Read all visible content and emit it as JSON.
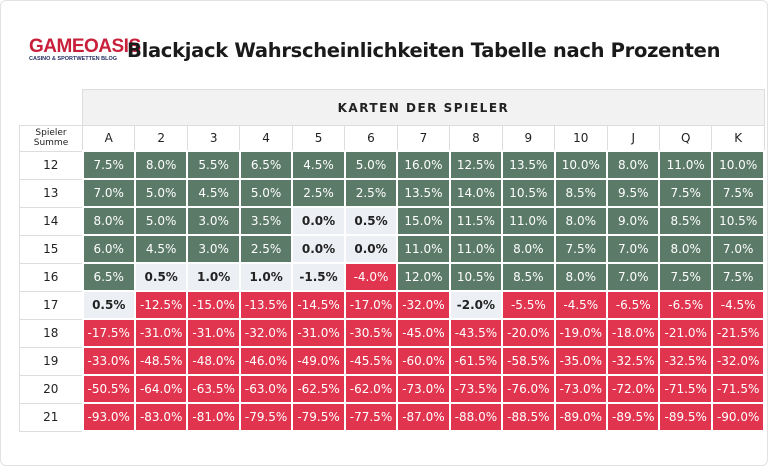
{
  "logo": {
    "name": "GAMEOASIS",
    "tagline": "CASINO & SPORTWETTEN BLOG"
  },
  "title": "Blackjack Wahrscheinlichkeiten Tabelle nach Prozenten",
  "table": {
    "group_header": "KARTEN DER SPIELER",
    "corner": "Spieler Summe",
    "columns": [
      "A",
      "2",
      "3",
      "4",
      "5",
      "6",
      "7",
      "8",
      "9",
      "10",
      "J",
      "Q",
      "K"
    ],
    "rows": [
      {
        "label": "12",
        "cells": [
          "7.5%",
          "8.0%",
          "5.5%",
          "6.5%",
          "4.5%",
          "5.0%",
          "16.0%",
          "12.5%",
          "13.5%",
          "10.0%",
          "8.0%",
          "11.0%",
          "10.0%"
        ]
      },
      {
        "label": "13",
        "cells": [
          "7.0%",
          "5.0%",
          "4.5%",
          "5.0%",
          "2.5%",
          "2.5%",
          "13.5%",
          "14.0%",
          "10.5%",
          "8.5%",
          "9.5%",
          "7.5%",
          "7.5%"
        ]
      },
      {
        "label": "14",
        "cells": [
          "8.0%",
          "5.0%",
          "3.0%",
          "3.5%",
          "0.0%",
          "0.5%",
          "15.0%",
          "11.5%",
          "11.0%",
          "8.0%",
          "9.0%",
          "8.5%",
          "10.5%"
        ]
      },
      {
        "label": "15",
        "cells": [
          "6.0%",
          "4.5%",
          "3.0%",
          "2.5%",
          "0.0%",
          "0.0%",
          "11.0%",
          "11.0%",
          "8.0%",
          "7.5%",
          "7.0%",
          "8.0%",
          "7.0%"
        ]
      },
      {
        "label": "16",
        "cells": [
          "6.5%",
          "0.5%",
          "1.0%",
          "1.0%",
          "-1.5%",
          "-4.0%",
          "12.0%",
          "10.5%",
          "8.5%",
          "8.0%",
          "7.0%",
          "7.5%",
          "7.5%"
        ]
      },
      {
        "label": "17",
        "cells": [
          "0.5%",
          "-12.5%",
          "-15.0%",
          "-13.5%",
          "-14.5%",
          "-17.0%",
          "-32.0%",
          "-2.0%",
          "-5.5%",
          "-4.5%",
          "-6.5%",
          "-6.5%",
          "-4.5%"
        ]
      },
      {
        "label": "18",
        "cells": [
          "-17.5%",
          "-31.0%",
          "-31.0%",
          "-32.0%",
          "-31.0%",
          "-30.5%",
          "-45.0%",
          "-43.5%",
          "-20.0%",
          "-19.0%",
          "-18.0%",
          "-21.0%",
          "-21.5%"
        ]
      },
      {
        "label": "19",
        "cells": [
          "-33.0%",
          "-48.5%",
          "-48.0%",
          "-46.0%",
          "-49.0%",
          "-45.5%",
          "-60.0%",
          "-61.5%",
          "-58.5%",
          "-35.0%",
          "-32.5%",
          "-32.5%",
          "-32.0%"
        ]
      },
      {
        "label": "20",
        "cells": [
          "-50.5%",
          "-64.0%",
          "-63.5%",
          "-63.0%",
          "-62.5%",
          "-62.0%",
          "-73.0%",
          "-73.5%",
          "-76.0%",
          "-73.0%",
          "-72.0%",
          "-71.5%",
          "-71.5%"
        ]
      },
      {
        "label": "21",
        "cells": [
          "-93.0%",
          "-83.0%",
          "-81.0%",
          "-79.5%",
          "-79.5%",
          "-77.5%",
          "-87.0%",
          "-88.0%",
          "-88.5%",
          "-89.0%",
          "-89.5%",
          "-89.5%",
          "-90.0%"
        ]
      }
    ]
  }
}
